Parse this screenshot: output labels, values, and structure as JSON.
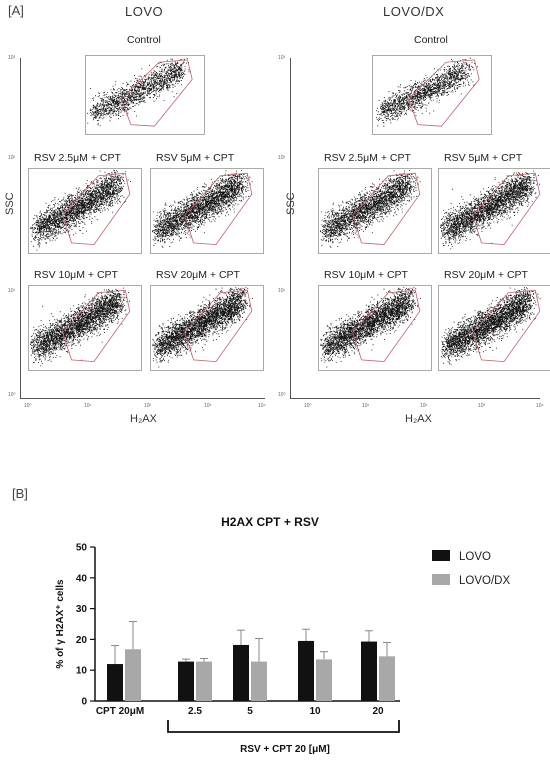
{
  "panel_a": {
    "label": "[A]",
    "groups": [
      {
        "title": "LOVO",
        "control": "Control",
        "conditions": [
          "RSV 2.5μM + CPT",
          "RSV 5μM + CPT",
          "RSV 10μM + CPT",
          "RSV 20μM + CPT"
        ],
        "gate_label": "H2AX",
        "x_axis_label": "H₂AX",
        "y_axis_label": "SSC",
        "y_ticks": [
          "10³",
          "10²",
          "10¹",
          "10⁰"
        ],
        "x_ticks": [
          "10⁰",
          "10¹",
          "10²",
          "10³",
          "10⁴"
        ]
      },
      {
        "title": "LOVO/DX",
        "control": "Control",
        "conditions": [
          "RSV 2.5μM + CPT",
          "RSV 5μM + CPT",
          "RSV 10μM + CPT",
          "RSV 20μM + CPT"
        ],
        "gate_label": "H2AX",
        "x_axis_label": "H₂AX",
        "y_axis_label": "SSC",
        "y_ticks": [
          "10³",
          "10²",
          "10¹",
          "10⁰"
        ],
        "x_ticks": [
          "10⁰",
          "10¹",
          "10²",
          "10³",
          "10⁴"
        ]
      }
    ]
  },
  "panel_b": {
    "label": "[B]"
  },
  "chart_data": {
    "type": "bar",
    "title": "H2AX CPT + RSV",
    "ylabel": "% of γ H2AX⁺ cells",
    "xlabel": "RSV + CPT 20 [μM]",
    "category_labels": [
      "CPT 20μM",
      "2.5",
      "5",
      "10",
      "20"
    ],
    "ylim": [
      0,
      50
    ],
    "yticks": [
      0,
      10,
      20,
      30,
      40,
      50
    ],
    "legend_position": "top-right",
    "series": [
      {
        "name": "LOVO",
        "color": "#111111",
        "values": [
          12,
          12.8,
          18.2,
          19.5,
          19.3
        ],
        "errors": [
          6,
          0.8,
          4.8,
          3.8,
          3.5
        ]
      },
      {
        "name": "LOVO/DX",
        "color": "#a8a8a8",
        "values": [
          16.8,
          12.8,
          12.8,
          13.5,
          14.5
        ],
        "errors": [
          9,
          1,
          7.5,
          2.5,
          4.5
        ]
      }
    ]
  }
}
